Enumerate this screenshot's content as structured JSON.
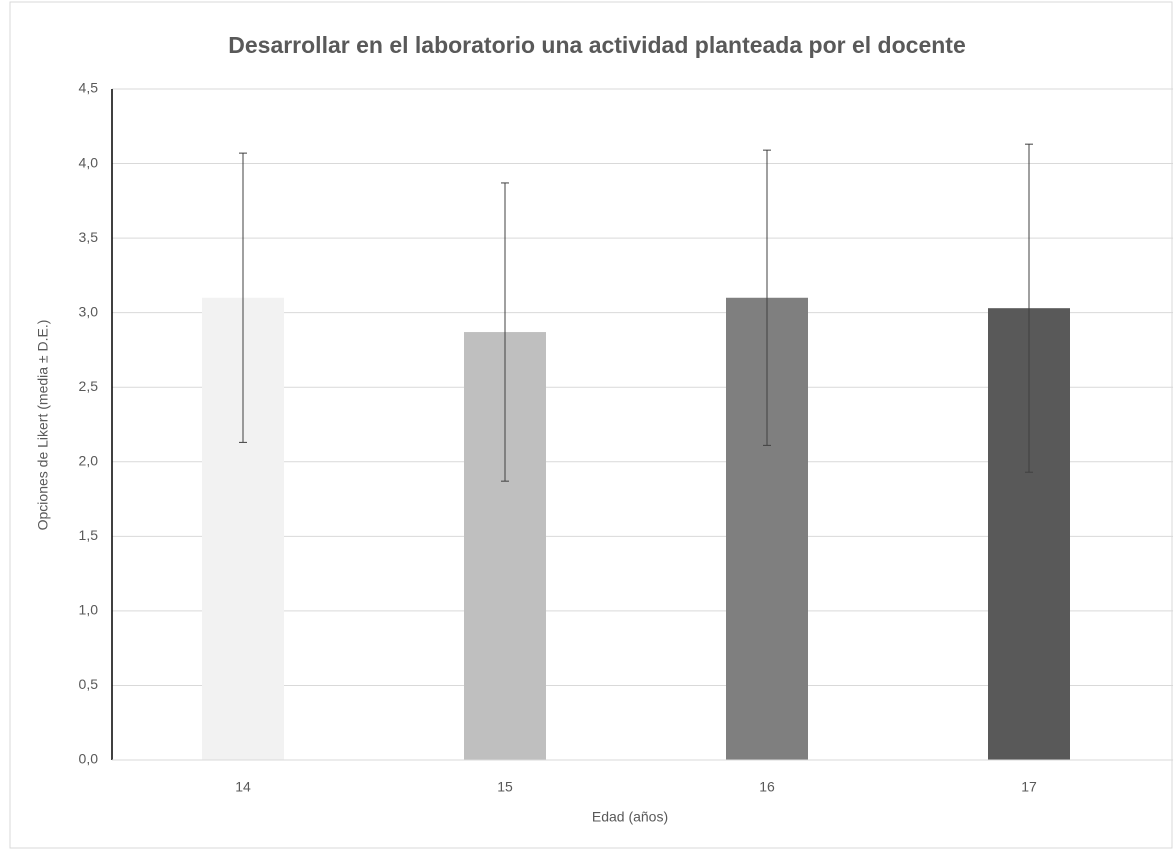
{
  "chart_data": {
    "type": "bar",
    "title": "Desarrollar en el laboratorio una actividad planteada por el docente",
    "x_label": "Edad (años)",
    "y_label": "Opciones de Likert (media ± D.E.)",
    "categories": [
      "14",
      "15",
      "16",
      "17"
    ],
    "values": [
      3.1,
      2.87,
      3.1,
      3.03
    ],
    "errors": [
      0.97,
      1.0,
      0.99,
      1.1
    ],
    "colors": [
      "#f2f2f2",
      "#bfbfbf",
      "#7f7f7f",
      "#595959"
    ],
    "ylim": [
      0,
      4.5
    ],
    "yticks": [
      {
        "value": 0,
        "label": "0,0"
      },
      {
        "value": 0.5,
        "label": "0,5"
      },
      {
        "value": 1,
        "label": "1,0"
      },
      {
        "value": 1.5,
        "label": "1,5"
      },
      {
        "value": 2,
        "label": "2,0"
      },
      {
        "value": 2.5,
        "label": "2,5"
      },
      {
        "value": 3,
        "label": "3,0"
      },
      {
        "value": 3.5,
        "label": "3,5"
      },
      {
        "value": 4,
        "label": "4,0"
      },
      {
        "value": 4.5,
        "label": "4,5"
      }
    ],
    "grid": true
  }
}
